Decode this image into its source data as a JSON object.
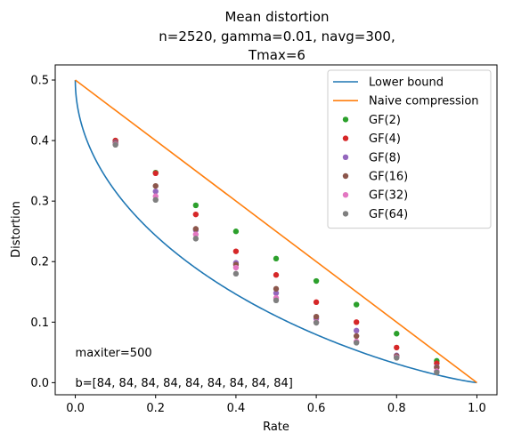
{
  "chart_data": {
    "type": "scatter",
    "title_lines": [
      "Mean distortion",
      "n=2520, gamma=0.01, navg=300,",
      "Tmax=6"
    ],
    "xlabel": "Rate",
    "ylabel": "Distortion",
    "xlim": [
      -0.05,
      1.05
    ],
    "ylim": [
      -0.02,
      0.525
    ],
    "xticks": [
      0.0,
      0.2,
      0.4,
      0.6,
      0.8,
      1.0
    ],
    "xtick_labels": [
      "0.0",
      "0.2",
      "0.4",
      "0.6",
      "0.8",
      "1.0"
    ],
    "yticks": [
      0.0,
      0.1,
      0.2,
      0.3,
      0.4,
      0.5
    ],
    "ytick_labels": [
      "0.0",
      "0.1",
      "0.2",
      "0.3",
      "0.4",
      "0.5"
    ],
    "grid": false,
    "legend_position": "top-right",
    "annotations": [
      {
        "text": "maxiter=500",
        "x": 0.0,
        "y": 0.05
      },
      {
        "text": "b=[84, 84, 84, 84, 84, 84, 84, 84, 84]",
        "x": 0.0,
        "y": 0.0
      }
    ],
    "lines": [
      {
        "name": "Lower bound",
        "color": "#1f77b4",
        "function": "binary-entropy-inverse"
      },
      {
        "name": "Naive compression",
        "color": "#ff7f0e",
        "x": [
          0.0,
          1.0
        ],
        "y": [
          0.5,
          0.0
        ]
      }
    ],
    "x": [
      0.1,
      0.2,
      0.3,
      0.4,
      0.5,
      0.6,
      0.7,
      0.8,
      0.9
    ],
    "series": [
      {
        "name": "GF(2)",
        "color": "#2ca02c",
        "values": [
          0.4,
          0.347,
          0.293,
          0.25,
          0.205,
          0.168,
          0.129,
          0.081,
          0.036
        ]
      },
      {
        "name": "GF(4)",
        "color": "#d62728",
        "values": [
          0.4,
          0.346,
          0.278,
          0.217,
          0.178,
          0.133,
          0.1,
          0.058,
          0.032
        ]
      },
      {
        "name": "GF(8)",
        "color": "#9467bd",
        "values": [
          0.397,
          0.316,
          0.252,
          0.198,
          0.148,
          0.106,
          0.086,
          0.045,
          0.026
        ]
      },
      {
        "name": "GF(16)",
        "color": "#8c564b",
        "values": [
          0.396,
          0.325,
          0.254,
          0.195,
          0.155,
          0.109,
          0.077,
          0.044,
          0.025
        ]
      },
      {
        "name": "GF(32)",
        "color": "#e377c2",
        "values": [
          0.394,
          0.308,
          0.245,
          0.19,
          0.14,
          0.1,
          0.068,
          0.042,
          0.019
        ]
      },
      {
        "name": "GF(64)",
        "color": "#7f7f7f",
        "values": [
          0.393,
          0.302,
          0.238,
          0.18,
          0.136,
          0.099,
          0.066,
          0.041,
          0.017
        ]
      }
    ]
  }
}
